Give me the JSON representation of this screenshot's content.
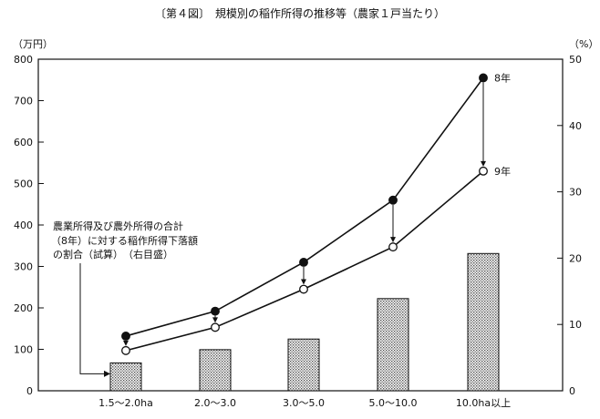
{
  "chart_data": {
    "type": "bar+line",
    "title": "〔第４図〕　規模別の稲作所得の推移等（農家１戸当たり）",
    "left_axis": {
      "unit": "（万円）",
      "ylim": [
        0,
        800
      ],
      "ticks": [
        0,
        100,
        200,
        300,
        400,
        500,
        600,
        700,
        800
      ]
    },
    "right_axis": {
      "unit": "（%）",
      "ylim": [
        0,
        50
      ],
      "ticks": [
        0,
        10,
        20,
        30,
        40,
        50
      ]
    },
    "categories": [
      "1.5～2.0ha",
      "2.0～3.0",
      "3.0～5.0",
      "5.0～10.0",
      "10.0ha以上"
    ],
    "series": [
      {
        "name": "8年",
        "kind": "line",
        "marker": "filled",
        "axis": "left",
        "values": [
          132,
          192,
          310,
          460,
          755
        ]
      },
      {
        "name": "9年",
        "kind": "line",
        "marker": "open",
        "axis": "left",
        "values": [
          97,
          153,
          245,
          347,
          530
        ]
      },
      {
        "kind": "bar",
        "axis": "right",
        "values": [
          4.2,
          6.2,
          7.8,
          13.9,
          20.7
        ]
      }
    ],
    "annotation": {
      "lines": [
        "農業所得及び農外所得の合計",
        "（8年）に対する稲作所得下落額",
        "の割合（試算）　（右目盛）"
      ],
      "points_to_category": 0
    },
    "grid": false,
    "arrows_between_series": true
  }
}
